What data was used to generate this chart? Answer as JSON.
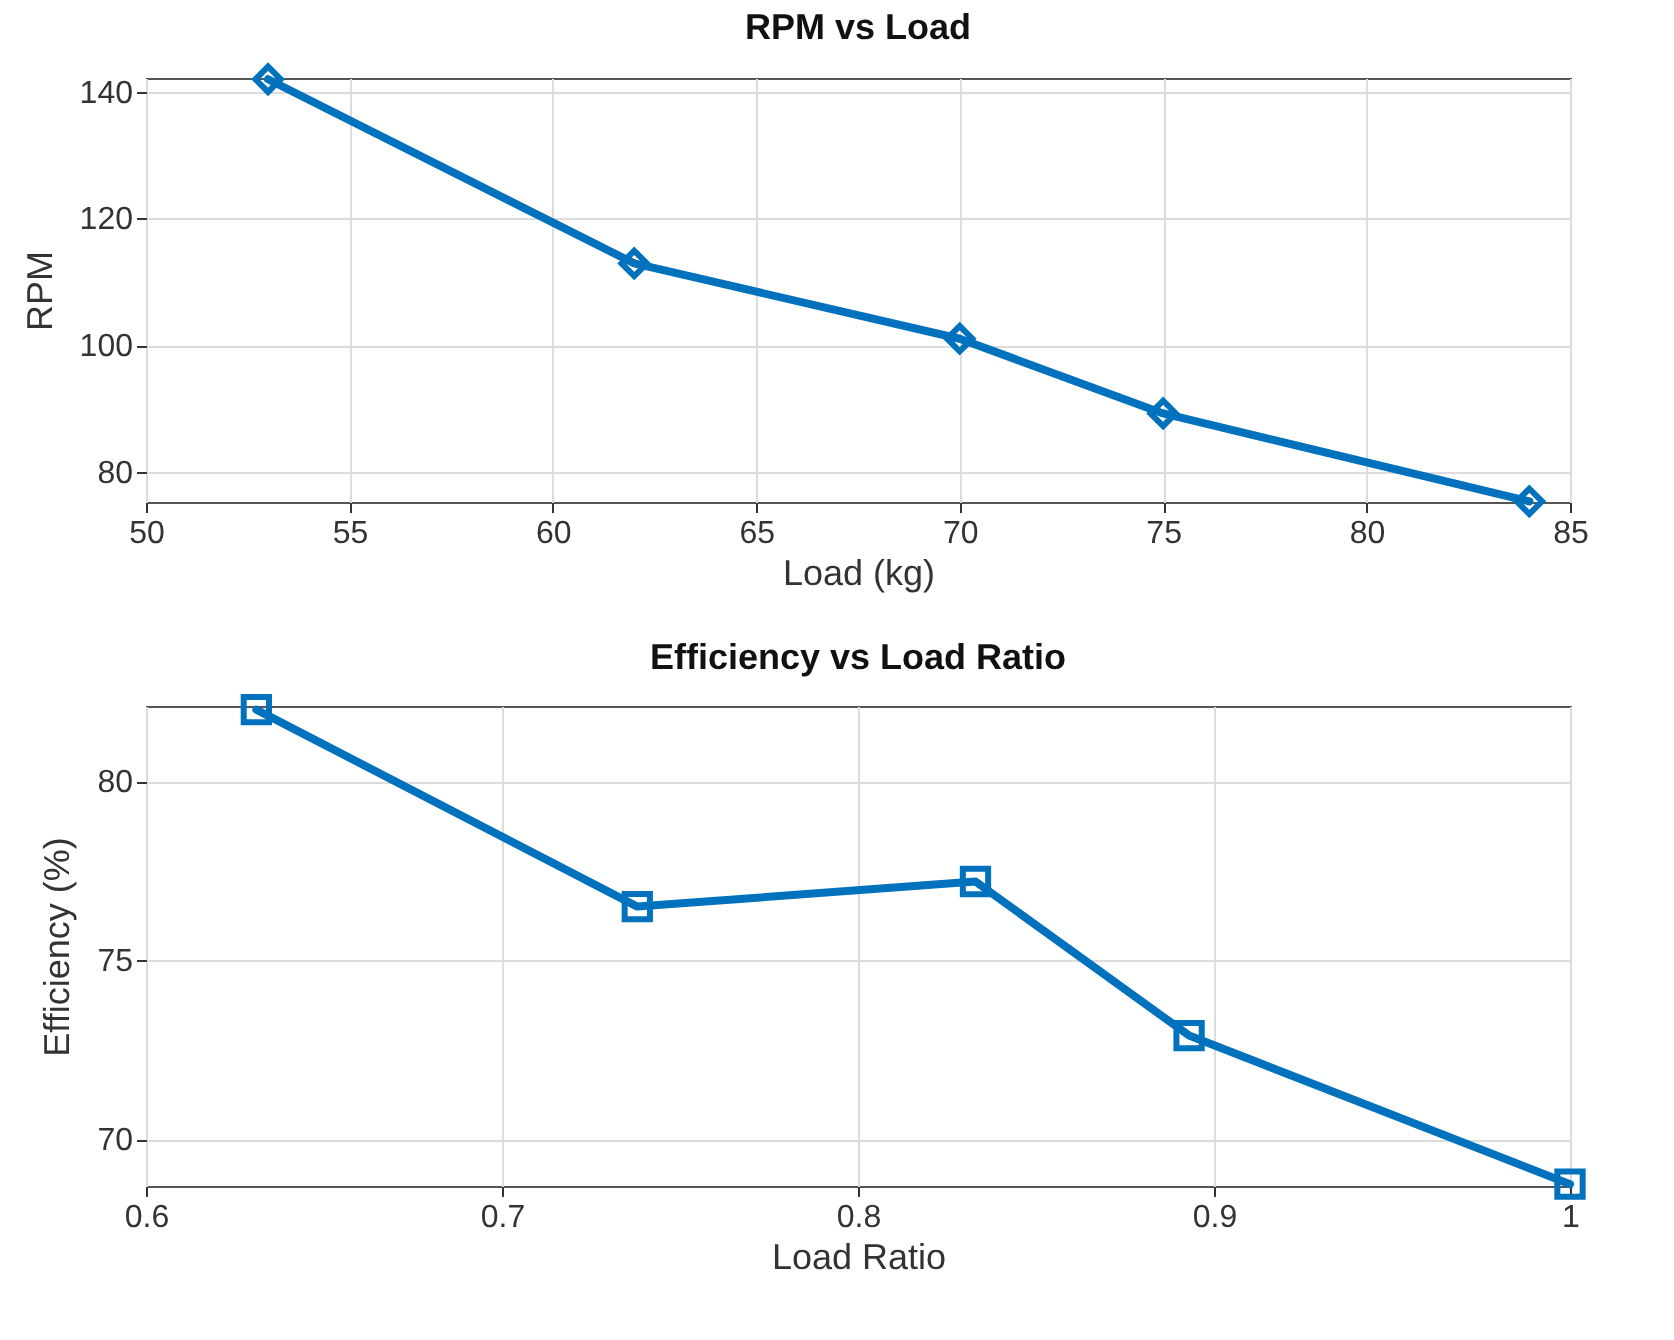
{
  "chart_data": [
    {
      "type": "line",
      "title": "RPM vs Load",
      "xlabel": "Load (kg)",
      "ylabel": "RPM",
      "x": [
        53,
        62,
        70,
        75,
        84
      ],
      "series": [
        {
          "color": "#0072bd",
          "values": [
            142,
            112.9,
            101,
            89.2,
            75.3
          ]
        }
      ],
      "xlim": [
        50,
        85
      ],
      "xticks": [
        50,
        55,
        60,
        65,
        70,
        75,
        80,
        85
      ],
      "ylim": [
        75.2,
        142.2
      ],
      "yticks": [
        80,
        100,
        120,
        140
      ],
      "grid": true,
      "marker": "diamond",
      "line_style": "solid"
    },
    {
      "type": "line",
      "title": "Efficiency vs Load Ratio",
      "xlabel": "Load Ratio",
      "ylabel": "Efficiency (%)",
      "x": [
        0.631,
        0.738,
        0.833,
        0.893,
        1.0
      ],
      "series": [
        {
          "color": "#0072bd",
          "values": [
            82,
            76.5,
            77.2,
            72.9,
            68.75
          ]
        }
      ],
      "xlim": [
        0.6,
        1
      ],
      "xticks": [
        0.6,
        0.7,
        0.8,
        0.9,
        1
      ],
      "ylim": [
        68.7,
        82.1
      ],
      "yticks": [
        70,
        75,
        80
      ],
      "grid": true,
      "marker": "square",
      "line_style": "solid"
    }
  ]
}
